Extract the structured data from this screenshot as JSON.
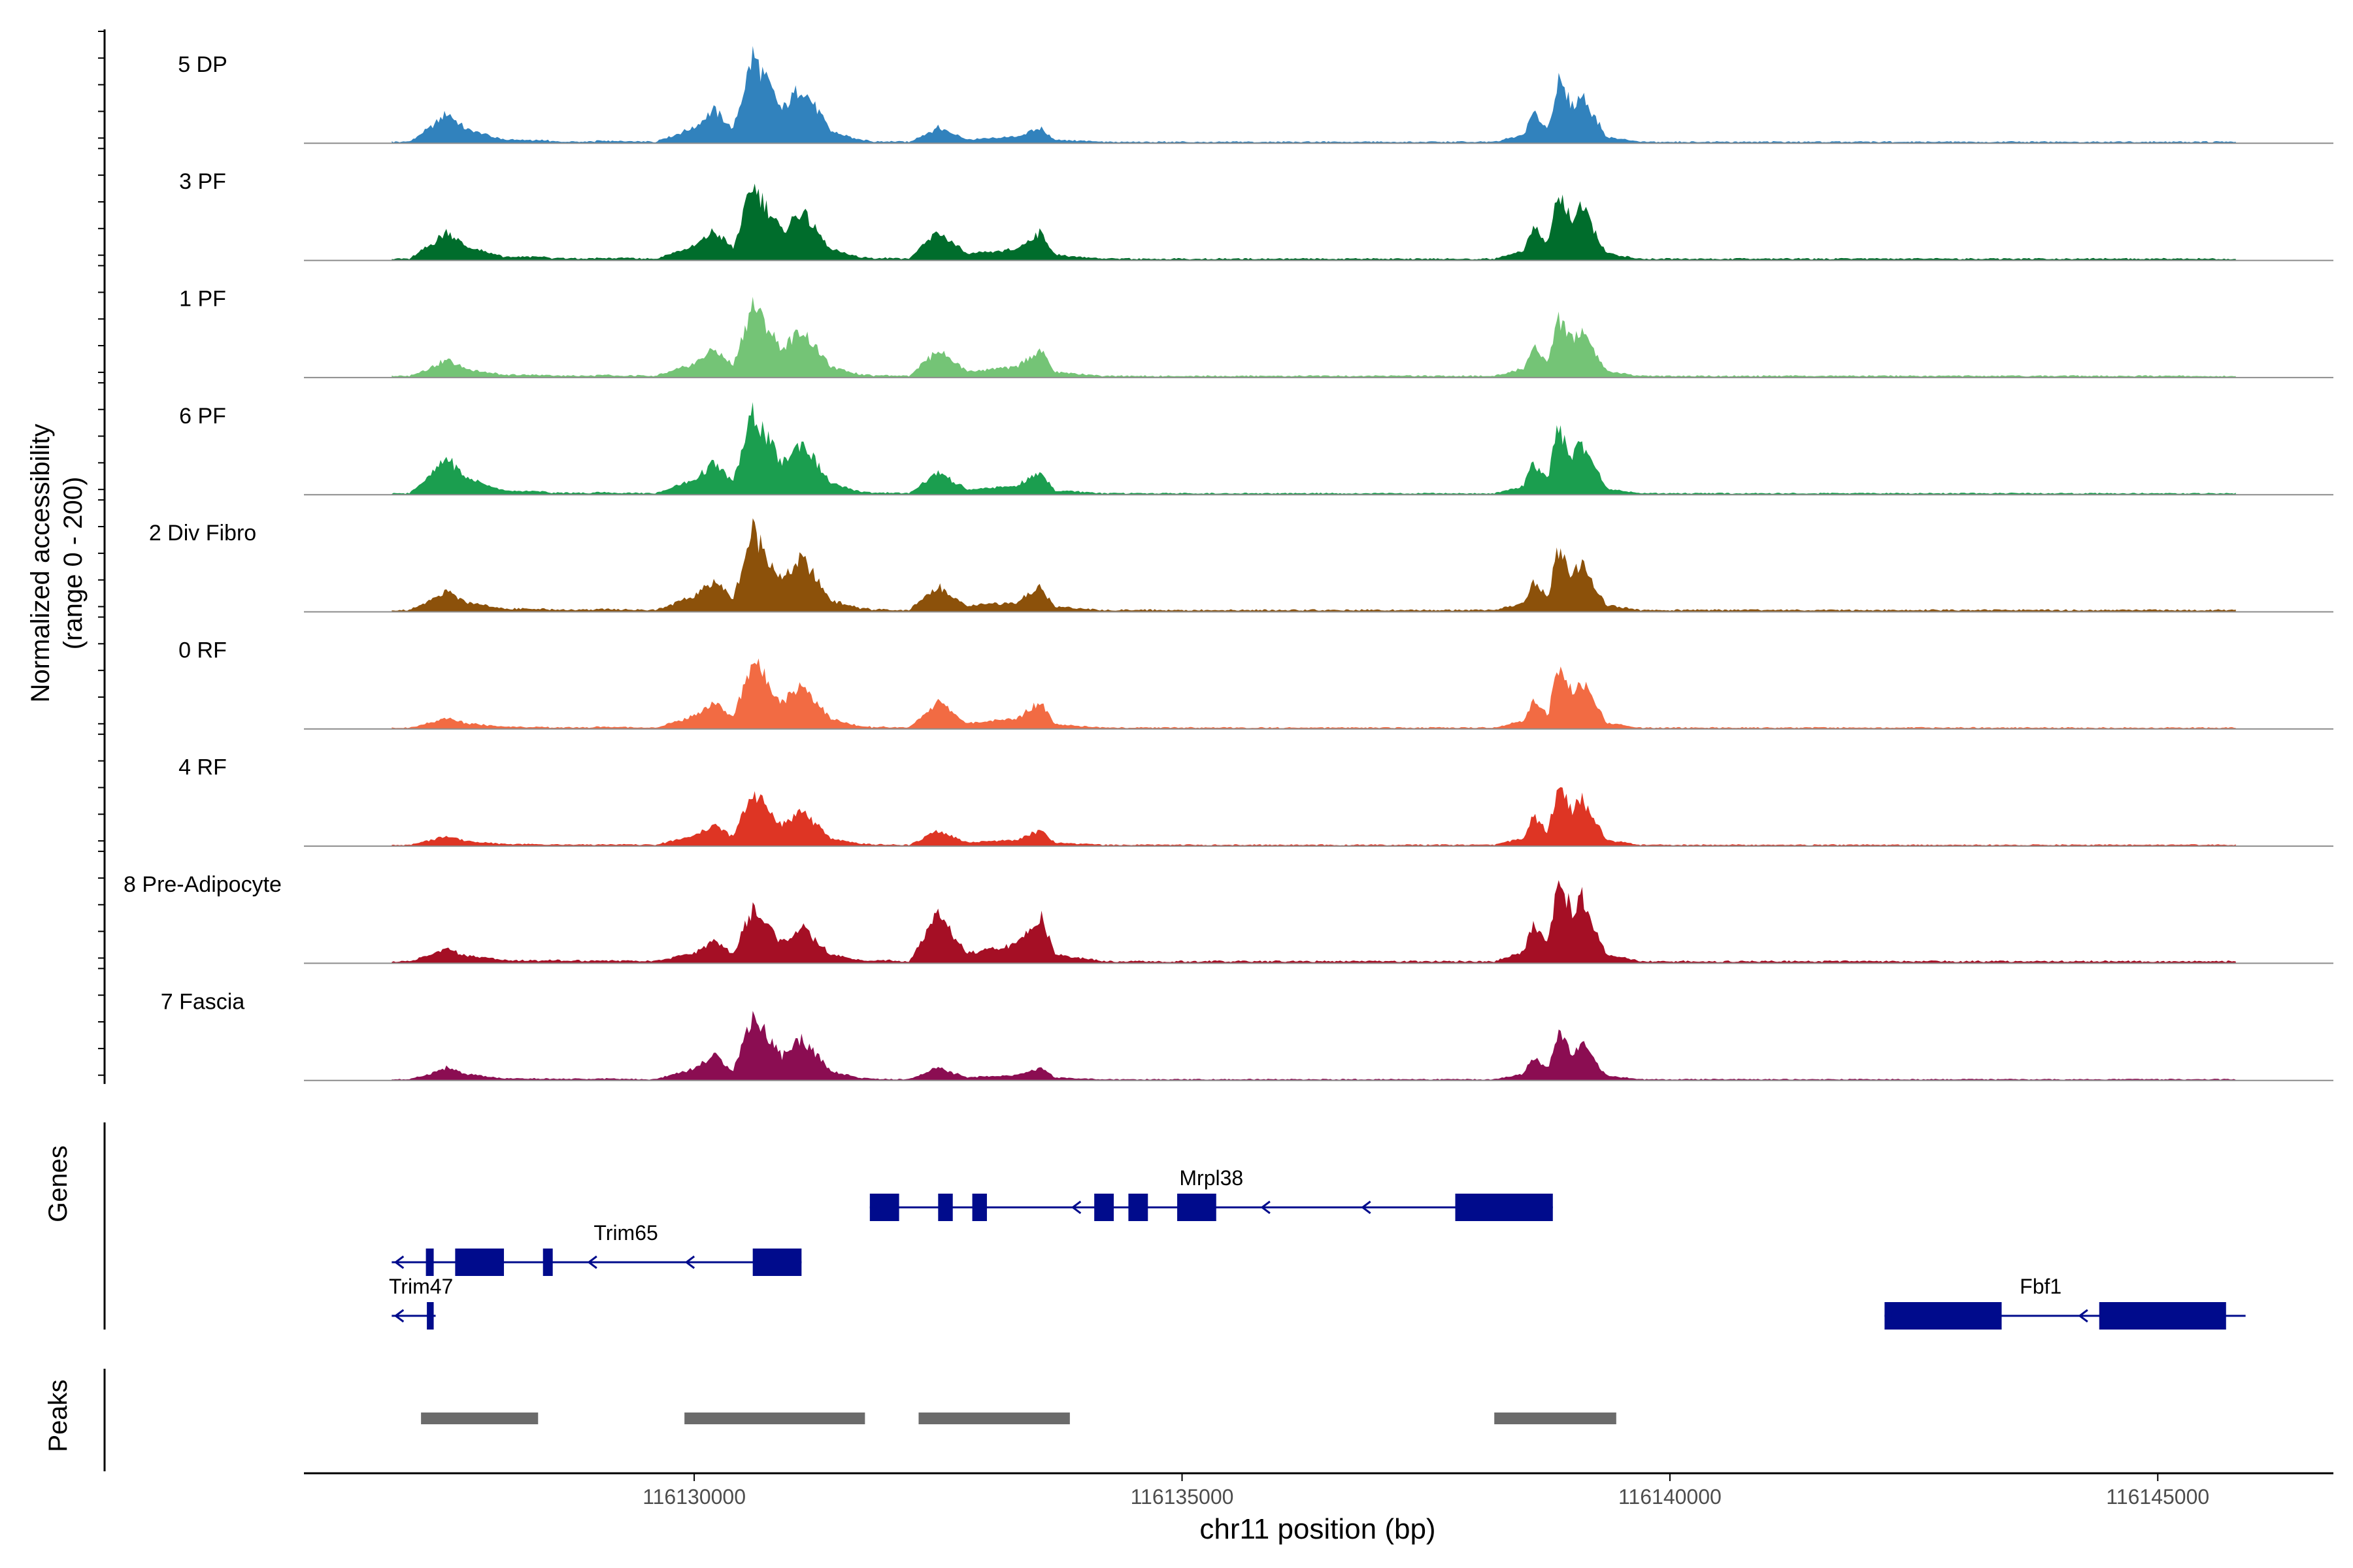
{
  "chart_data": {
    "type": "area",
    "title": "",
    "ylabel_line1": "Normalized accessibility",
    "ylabel_line2": "(range 0 - 200)",
    "xlabel": "chr11 position (bp)",
    "xlim": [
      116126000,
      116146800
    ],
    "ylim": [
      0,
      200
    ],
    "x_ticks": [
      116130000,
      116135000,
      116140000,
      116145000
    ],
    "x_tick_labels": [
      "116130000",
      "116135000",
      "116140000",
      "116145000"
    ],
    "genes_label": "Genes",
    "peaks_label": "Peaks",
    "peak_shape": [
      [
        116127080,
        0.0
      ],
      [
        116127300,
        0.2
      ],
      [
        116127470,
        0.4
      ],
      [
        116127650,
        0.18
      ],
      [
        116128050,
        0.03
      ],
      [
        116129600,
        0.0
      ],
      [
        116130000,
        0.16
      ],
      [
        116130200,
        0.36
      ],
      [
        116130400,
        0.14
      ],
      [
        116130600,
        0.96
      ],
      [
        116130900,
        0.35
      ],
      [
        116131100,
        0.62
      ],
      [
        116131400,
        0.12
      ],
      [
        116131700,
        0.02
      ],
      [
        116132200,
        0.0
      ],
      [
        116132500,
        0.35
      ],
      [
        116132800,
        0.06
      ],
      [
        116133300,
        0.12
      ],
      [
        116133550,
        0.35
      ],
      [
        116133700,
        0.05
      ],
      [
        116134200,
        0.0
      ],
      [
        116138200,
        0.0
      ],
      [
        116138500,
        0.12
      ],
      [
        116138600,
        0.48
      ],
      [
        116138750,
        0.22
      ],
      [
        116138850,
        1.0
      ],
      [
        116139000,
        0.6
      ],
      [
        116139100,
        0.78
      ],
      [
        116139350,
        0.08
      ],
      [
        116139700,
        0.0
      ],
      [
        116146000,
        0.0
      ]
    ],
    "series": [
      {
        "name": "5 DP",
        "color": "#3182bd",
        "scale": 0.62,
        "peak_scales": [
          1.1,
          1.35,
          0.6,
          0.9,
          0.25
        ]
      },
      {
        "name": "3 PF",
        "color": "#006d2c",
        "scale": 0.72,
        "peak_scales": [
          0.9,
          1.0,
          1.0,
          0.85,
          0.3
        ]
      },
      {
        "name": "1 PF",
        "color": "#74c476",
        "scale": 0.7,
        "peak_scales": [
          0.55,
          1.0,
          1.0,
          0.8,
          0.2
        ]
      },
      {
        "name": "6 PF",
        "color": "#1b9e4f",
        "scale": 0.6,
        "peak_scales": [
          1.4,
          1.3,
          0.95,
          1.0,
          0.4
        ]
      },
      {
        "name": "2 Div Fibro",
        "color": "#8c510a",
        "scale": 0.78,
        "peak_scales": [
          0.55,
          1.0,
          0.8,
          0.7,
          0.3
        ]
      },
      {
        "name": "0 RF",
        "color": "#f26b43",
        "scale": 0.58,
        "peak_scales": [
          0.4,
          1.15,
          1.2,
          0.95,
          0.2
        ]
      },
      {
        "name": "4 RF",
        "color": "#de3524",
        "scale": 0.55,
        "peak_scales": [
          0.4,
          0.95,
          0.7,
          1.0,
          0.25
        ]
      },
      {
        "name": "8 Pre-Adipocyte",
        "color": "#a50f25",
        "scale": 0.85,
        "peak_scales": [
          0.35,
          0.6,
          1.45,
          0.9,
          0.5
        ]
      },
      {
        "name": "7 Fascia",
        "color": "#8b0d52",
        "scale": 0.5,
        "peak_scales": [
          0.55,
          1.25,
          0.6,
          0.85,
          0.45
        ]
      }
    ],
    "genes": [
      {
        "name": "Trim65",
        "strand": "-",
        "start": 116126900,
        "end": 116131100,
        "row": 1,
        "exons": [
          [
            116127250,
            116127330
          ],
          [
            116127550,
            116128050
          ],
          [
            116128450,
            116128550
          ],
          [
            116130600,
            116131100
          ]
        ],
        "arrows": [
          116128920,
          116129920
        ]
      },
      {
        "name": "Mrpl38",
        "strand": "-",
        "start": 116131800,
        "end": 116138800,
        "row": 0,
        "exons": [
          [
            116131800,
            116132100
          ],
          [
            116132500,
            116132650
          ],
          [
            116132850,
            116133000
          ],
          [
            116134100,
            116134300
          ],
          [
            116134450,
            116134650
          ],
          [
            116134950,
            116135350
          ],
          [
            116137800,
            116138800
          ]
        ],
        "arrows": [
          116133880,
          116135820,
          116136850
        ]
      },
      {
        "name": "Trim47",
        "strand": "-",
        "start": 116126900,
        "end": 116127350,
        "row": 2,
        "exons": [
          [
            116127260,
            116127330
          ]
        ],
        "arrows": []
      },
      {
        "name": "Fbf1",
        "strand": "-",
        "start": 116142200,
        "end": 116145900,
        "row": 2,
        "exons": [
          [
            116142200,
            116143400
          ],
          [
            116144400,
            116145700
          ]
        ],
        "arrows": [
          116144200
        ]
      }
    ],
    "peaks": [
      [
        116127200,
        116128400
      ],
      [
        116129900,
        116131750
      ],
      [
        116132300,
        116133850
      ],
      [
        116138200,
        116139450
      ]
    ]
  }
}
